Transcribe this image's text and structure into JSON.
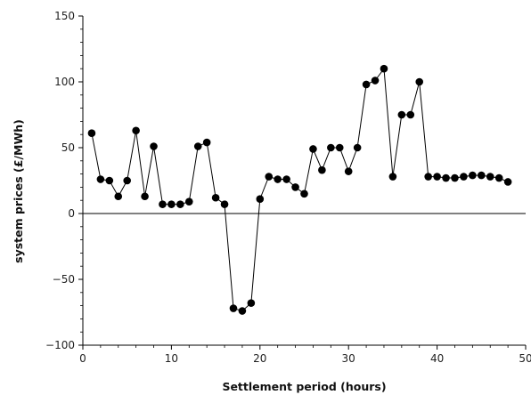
{
  "chart_data": {
    "type": "line",
    "title": "",
    "xlabel": "Settlement period (hours)",
    "ylabel": "system prices (£/MWh)",
    "xlim": [
      0,
      50
    ],
    "ylim": [
      -100,
      150
    ],
    "xticks": [
      0,
      10,
      20,
      30,
      40,
      50
    ],
    "yticks": [
      -100,
      -50,
      0,
      50,
      100,
      150
    ],
    "ytick_labels": [
      "−100",
      "−50",
      "0",
      "50",
      "100",
      "150"
    ],
    "grid": false,
    "reference_line_y": 0,
    "marker": "circle",
    "series": [
      {
        "color": "#000000",
        "x": [
          1,
          2,
          3,
          4,
          5,
          6,
          7,
          8,
          9,
          10,
          11,
          12,
          13,
          14,
          15,
          16,
          17,
          18,
          19,
          20,
          21,
          22,
          23,
          24,
          25,
          26,
          27,
          28,
          29,
          30,
          31,
          32,
          33,
          34,
          35,
          36,
          37,
          38,
          39,
          40,
          41,
          42,
          43,
          44,
          45,
          46,
          47,
          48
        ],
        "y": [
          61,
          26,
          25,
          13,
          25,
          63,
          13,
          51,
          7,
          7,
          7,
          9,
          51,
          54,
          12,
          7,
          -72,
          -74,
          -68,
          11,
          28,
          26,
          26,
          20,
          15,
          49,
          33,
          50,
          50,
          32,
          50,
          98,
          101,
          110,
          28,
          75,
          75,
          100,
          28,
          28,
          27,
          27,
          28,
          29,
          29,
          28,
          27,
          24
        ]
      }
    ]
  }
}
